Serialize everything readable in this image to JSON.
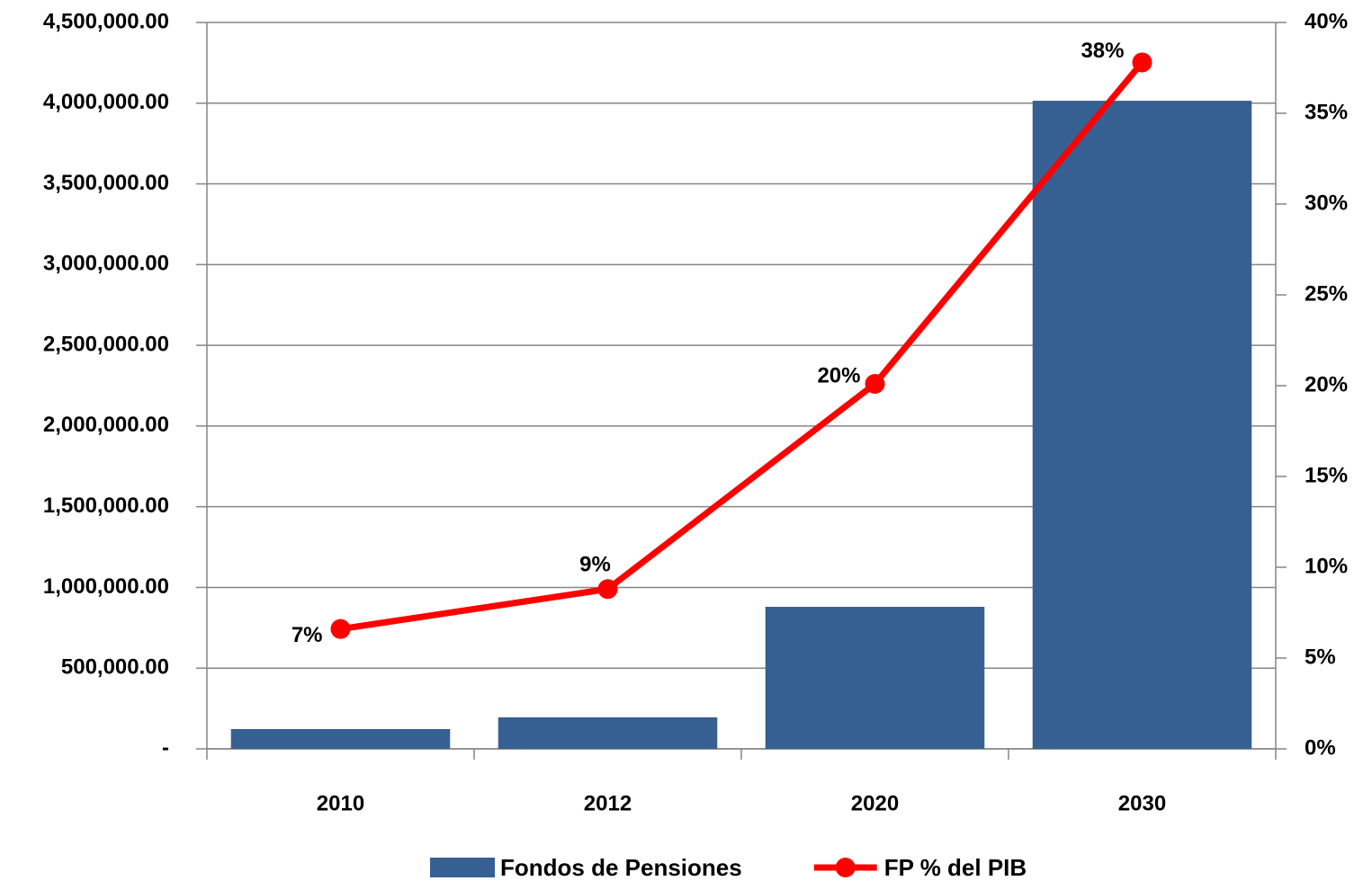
{
  "chart_data": {
    "type": "bar",
    "categories": [
      "2010",
      "2012",
      "2020",
      "2030"
    ],
    "series": [
      {
        "name": "Fondos de Pensiones",
        "type": "bar",
        "color": "#376092",
        "values": [
          122500,
          195000,
          880000,
          4015000
        ]
      },
      {
        "name": "FP % del PIB",
        "type": "line",
        "axis": "y2",
        "color": "#ff0000",
        "values": [
          6.6,
          8.8,
          20.1,
          37.8
        ],
        "value_labels": [
          "7%",
          "9%",
          "20%",
          "38%"
        ]
      }
    ],
    "ylim": [
      0,
      4500000
    ],
    "yticks": [
      {
        "value": 0,
        "label": "-"
      },
      {
        "value": 500000,
        "label": "500,000.00"
      },
      {
        "value": 1000000,
        "label": "1,000,000.00"
      },
      {
        "value": 1500000,
        "label": "1,500,000.00"
      },
      {
        "value": 2000000,
        "label": "2,000,000.00"
      },
      {
        "value": 2500000,
        "label": "2,500,000.00"
      },
      {
        "value": 3000000,
        "label": "3,000,000.00"
      },
      {
        "value": 3500000,
        "label": "3,500,000.00"
      },
      {
        "value": 4000000,
        "label": "4,000,000.00"
      },
      {
        "value": 4500000,
        "label": "4,500,000.00"
      }
    ],
    "y2lim": [
      0,
      40
    ],
    "y2ticks": [
      {
        "value": 0,
        "label": "0%"
      },
      {
        "value": 5,
        "label": "5%"
      },
      {
        "value": 10,
        "label": "10%"
      },
      {
        "value": 15,
        "label": "15%"
      },
      {
        "value": 20,
        "label": "20%"
      },
      {
        "value": 25,
        "label": "25%"
      },
      {
        "value": 30,
        "label": "30%"
      },
      {
        "value": 35,
        "label": "35%"
      },
      {
        "value": 40,
        "label": "40%"
      }
    ],
    "grid": true,
    "legend": "bottom"
  }
}
